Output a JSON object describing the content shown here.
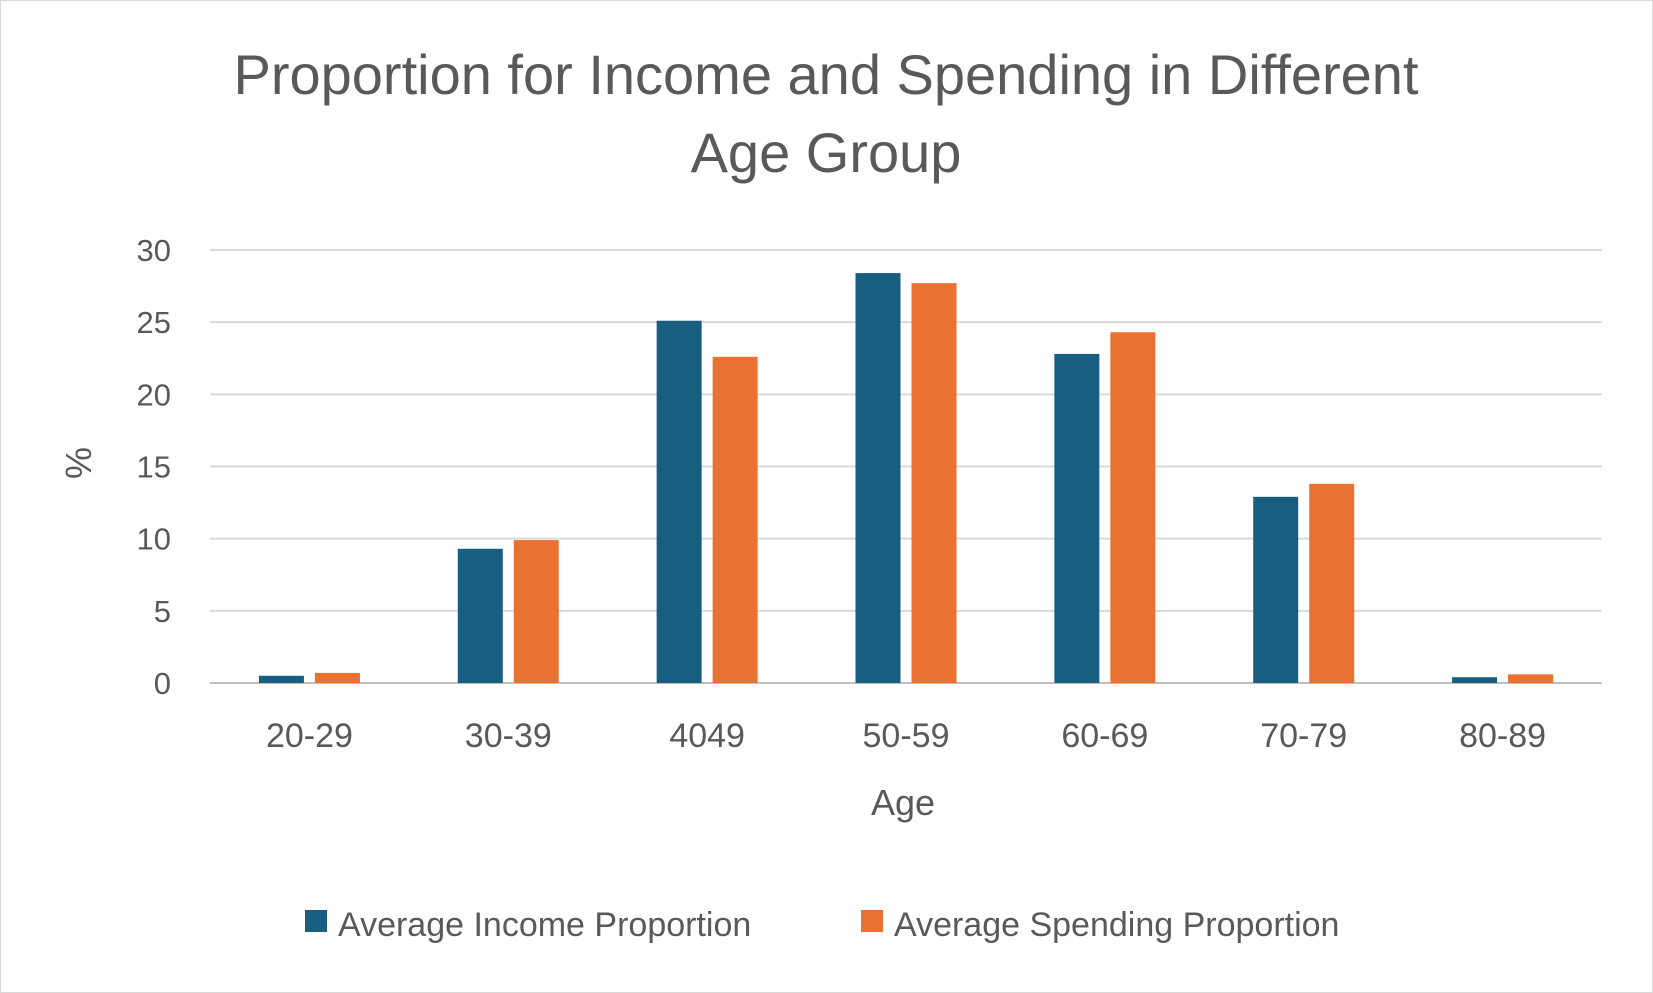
{
  "chart_data": {
    "type": "bar",
    "title_lines": [
      "Proportion for Income and Spending in Different",
      "Age Group"
    ],
    "xlabel": "Age",
    "ylabel": "%",
    "categories": [
      "20-29",
      "30-39",
      "4049",
      "50-59",
      "60-69",
      "70-79",
      "80-89"
    ],
    "series": [
      {
        "name": "Average Income Proportion",
        "color": "#185e80",
        "values": [
          0.5,
          9.3,
          25.1,
          28.4,
          22.8,
          12.9,
          0.4
        ]
      },
      {
        "name": "Average Spending Proportion",
        "color": "#e97132",
        "values": [
          0.7,
          9.9,
          22.6,
          27.7,
          24.3,
          13.8,
          0.6
        ]
      }
    ],
    "ylim": [
      0,
      30
    ],
    "yticks": [
      0,
      5,
      10,
      15,
      20,
      25,
      30
    ],
    "grid": true,
    "legend_position": "bottom"
  }
}
